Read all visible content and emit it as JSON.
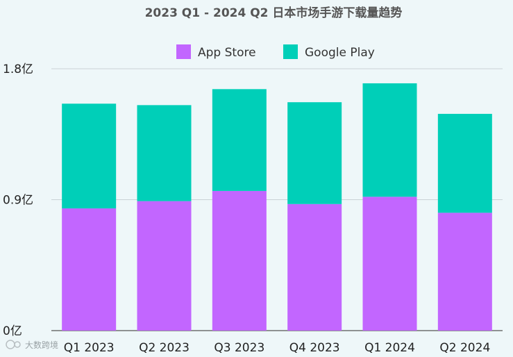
{
  "chart_data": {
    "type": "bar",
    "stacked": true,
    "title": "2023 Q1 - 2024 Q2 日本市场手游下载量趋势",
    "categories": [
      "Q1 2023",
      "Q2 2023",
      "Q3 2023",
      "Q4 2023",
      "Q1 2024",
      "Q2 2024"
    ],
    "series": [
      {
        "name": "App Store",
        "color": "#c266ff",
        "values": [
          0.84,
          0.89,
          0.96,
          0.87,
          0.92,
          0.81
        ]
      },
      {
        "name": "Google Play",
        "color": "#00cfb8",
        "values": [
          0.72,
          0.66,
          0.7,
          0.7,
          0.78,
          0.68
        ]
      }
    ],
    "ylim": [
      0,
      1.8
    ],
    "yticks": [
      {
        "value": 0,
        "label": "0亿"
      },
      {
        "value": 0.9,
        "label": "0.9亿"
      },
      {
        "value": 1.8,
        "label": "1.8亿"
      }
    ],
    "grid": true,
    "legend_position": "top-center",
    "xlabel": "",
    "ylabel": ""
  },
  "watermark": {
    "text": "大数跨境",
    "icon": "logo-icon"
  }
}
